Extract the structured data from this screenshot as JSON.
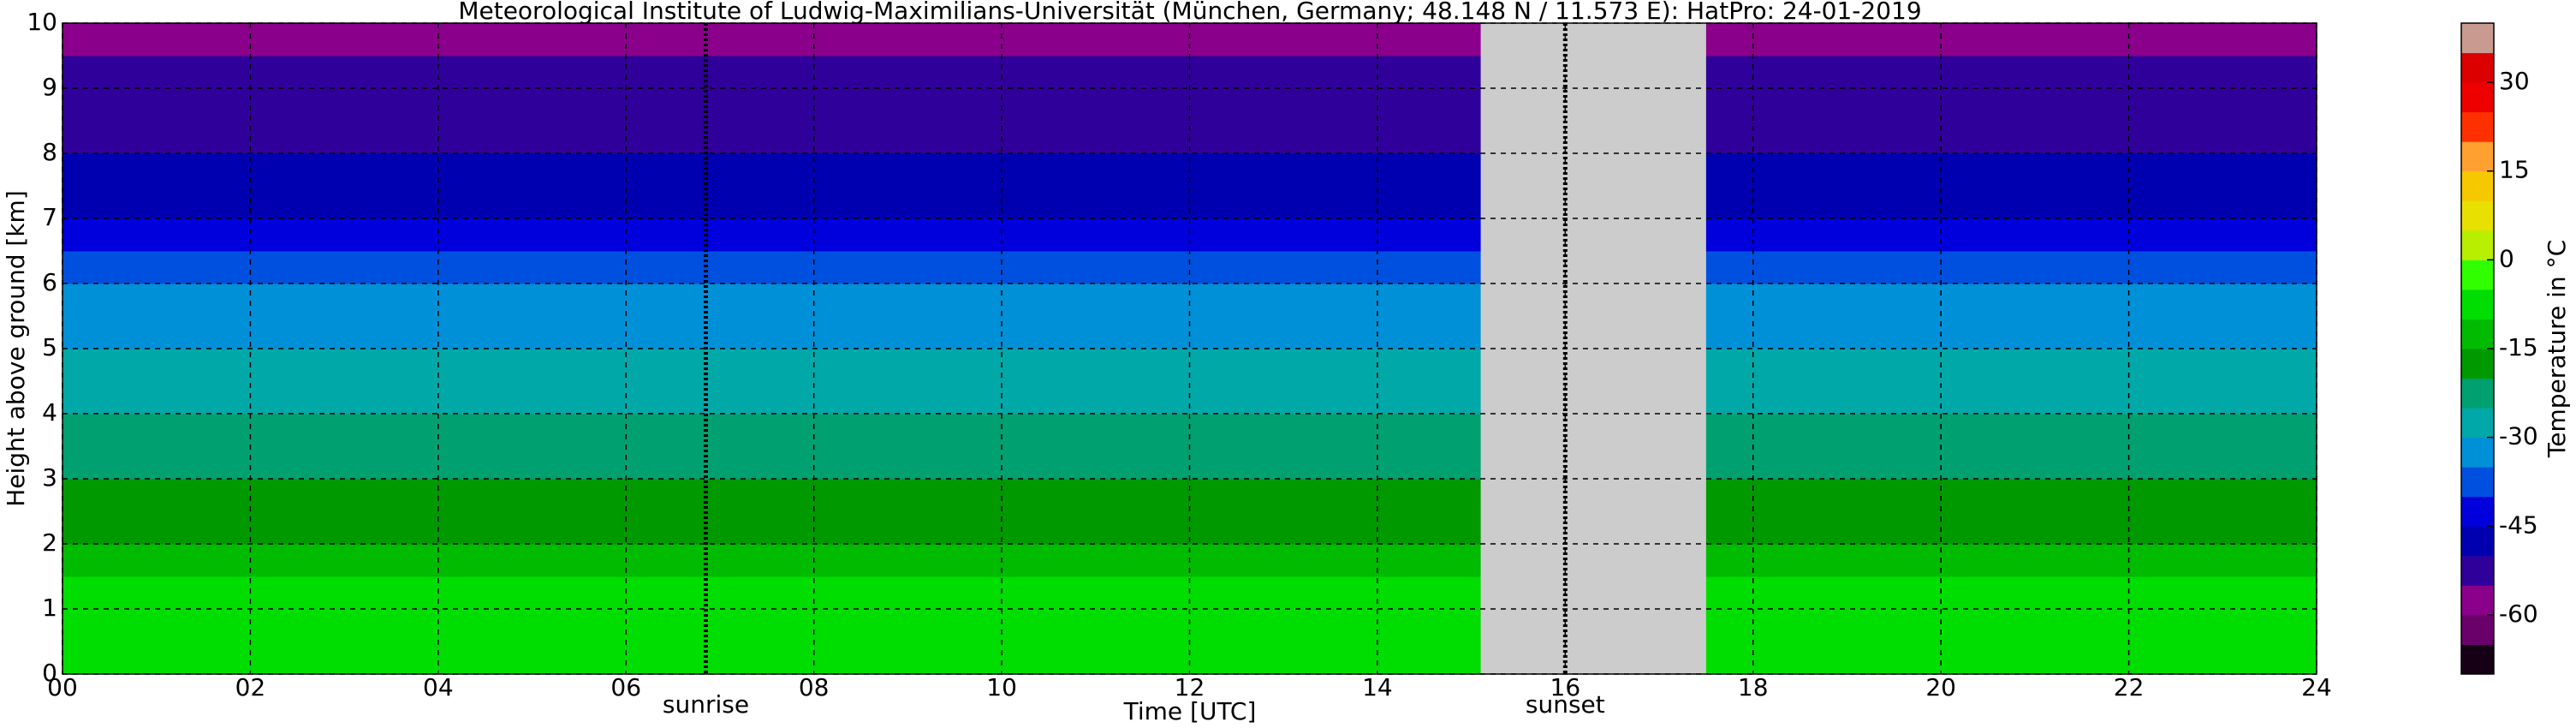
{
  "chart_data": {
    "type": "heatmap",
    "title": "Meteorological Institute of Ludwig-Maximilians-Universität (München, Germany; 48.148 N / 11.573 E):    HatPro: 24-01-2019",
    "x_label": "Time [UTC]",
    "y_label": "Height above ground [km]",
    "x_edges": [
      0,
      2,
      4,
      6,
      8,
      10,
      12,
      14,
      15.1,
      17.5,
      20,
      22,
      24
    ],
    "y_edges": [
      0,
      0.5,
      1,
      1.5,
      2,
      2.5,
      3,
      3.5,
      4,
      4.5,
      5,
      5.5,
      6,
      6.5,
      7,
      7.5,
      8,
      8.5,
      9,
      9.5,
      10
    ],
    "values": [
      [
        -7,
        -7,
        -7,
        -7,
        -7,
        -7,
        -7,
        -7,
        null,
        -7,
        -7,
        -7
      ],
      [
        -8,
        -8,
        -8,
        -8,
        -8,
        -8,
        -8,
        -8,
        null,
        -8,
        -8,
        -8
      ],
      [
        -10,
        -10,
        -10,
        -10,
        -10,
        -10,
        -10,
        -10,
        null,
        -10,
        -10,
        -10
      ],
      [
        -12,
        -12,
        -12,
        -12,
        -12,
        -12,
        -12,
        -12,
        null,
        -12,
        -12,
        -12
      ],
      [
        -16,
        -16,
        -16,
        -16,
        -16,
        -16,
        -16,
        -16,
        null,
        -16,
        -16,
        -16
      ],
      [
        -17,
        -17,
        -17,
        -17,
        -17,
        -17,
        -17,
        -17,
        null,
        -17,
        -17,
        -17
      ],
      [
        -21,
        -21,
        -21,
        -21,
        -21,
        -21,
        -21,
        -21,
        null,
        -21,
        -21,
        -21
      ],
      [
        -24,
        -24,
        -24,
        -24,
        -24,
        -24,
        -24,
        -24,
        null,
        -24,
        -24,
        -24
      ],
      [
        -27,
        -27,
        -27,
        -27,
        -27,
        -27,
        -27,
        -27,
        null,
        -27,
        -27,
        -27
      ],
      [
        -30,
        -30,
        -30,
        -30,
        -30,
        -30,
        -30,
        -30,
        null,
        -30,
        -30,
        -30
      ],
      [
        -32,
        -32,
        -32,
        -32,
        -32,
        -32,
        -32,
        -32,
        null,
        -32,
        -32,
        -32
      ],
      [
        -35,
        -35,
        -35,
        -35,
        -35,
        -35,
        -35,
        -35,
        null,
        -35,
        -35,
        -35
      ],
      [
        -38,
        -38,
        -38,
        -38,
        -38,
        -38,
        -38,
        -38,
        null,
        -38,
        -38,
        -38
      ],
      [
        -42,
        -42,
        -42,
        -42,
        -42,
        -42,
        -42,
        -42,
        null,
        -42,
        -42,
        -42
      ],
      [
        -47,
        -47,
        -47,
        -47,
        -47,
        -47,
        -47,
        -47,
        null,
        -47,
        -47,
        -47
      ],
      [
        -49,
        -49,
        -49,
        -49,
        -49,
        -49,
        -49,
        -49,
        null,
        -49,
        -49,
        -49
      ],
      [
        -51,
        -51,
        -51,
        -51,
        -51,
        -51,
        -51,
        -51,
        null,
        -51,
        -51,
        -51
      ],
      [
        -52,
        -52,
        -52,
        -52,
        -52,
        -52,
        -52,
        -52,
        null,
        -52,
        -52,
        -52
      ],
      [
        -54,
        -54,
        -54,
        -54,
        -54,
        -54,
        -54,
        -54,
        null,
        -54,
        -54,
        -54
      ],
      [
        -56,
        -56,
        -56,
        -56,
        -56,
        -56,
        -56,
        -56,
        null,
        -56,
        -56,
        -56
      ]
    ],
    "missing_color": "#cccccc",
    "xlim": [
      0,
      24
    ],
    "ylim": [
      0,
      10
    ],
    "xticks": [
      {
        "value": 0,
        "label": "00"
      },
      {
        "value": 2,
        "label": "02"
      },
      {
        "value": 4,
        "label": "04"
      },
      {
        "value": 6,
        "label": "06"
      },
      {
        "value": 8,
        "label": "08"
      },
      10,
      12,
      14,
      16,
      18,
      20,
      22,
      24
    ],
    "yticks": [
      0,
      1,
      2,
      3,
      4,
      5,
      6,
      7,
      8,
      9,
      10
    ],
    "grid": true,
    "markers": [
      {
        "label": "sunrise",
        "x": 6.85
      },
      {
        "label": "sunset",
        "x": 16.0
      }
    ],
    "colorbar": {
      "label": "Temperature in °C",
      "lim": [
        -70,
        40
      ],
      "ticks": [
        -60,
        -45,
        -30,
        -15,
        0,
        15,
        30
      ],
      "levels": [
        -70,
        -65,
        -60,
        -55,
        -50,
        -45,
        -40,
        -35,
        -30,
        -25,
        -20,
        -15,
        -10,
        -5,
        0,
        5,
        10,
        15,
        20,
        25,
        30,
        35,
        40
      ],
      "colors": [
        "#150015",
        "#6a006a",
        "#8a008a",
        "#30009a",
        "#0000b0",
        "#0000dd",
        "#0050e0",
        "#0090d8",
        "#00a8a8",
        "#00a070",
        "#009900",
        "#00bb00",
        "#00dd00",
        "#30ff00",
        "#b8ee00",
        "#e8e000",
        "#f5c800",
        "#ffa030",
        "#ff3000",
        "#ee0000",
        "#dd0000",
        "#c89a90"
      ]
    }
  }
}
